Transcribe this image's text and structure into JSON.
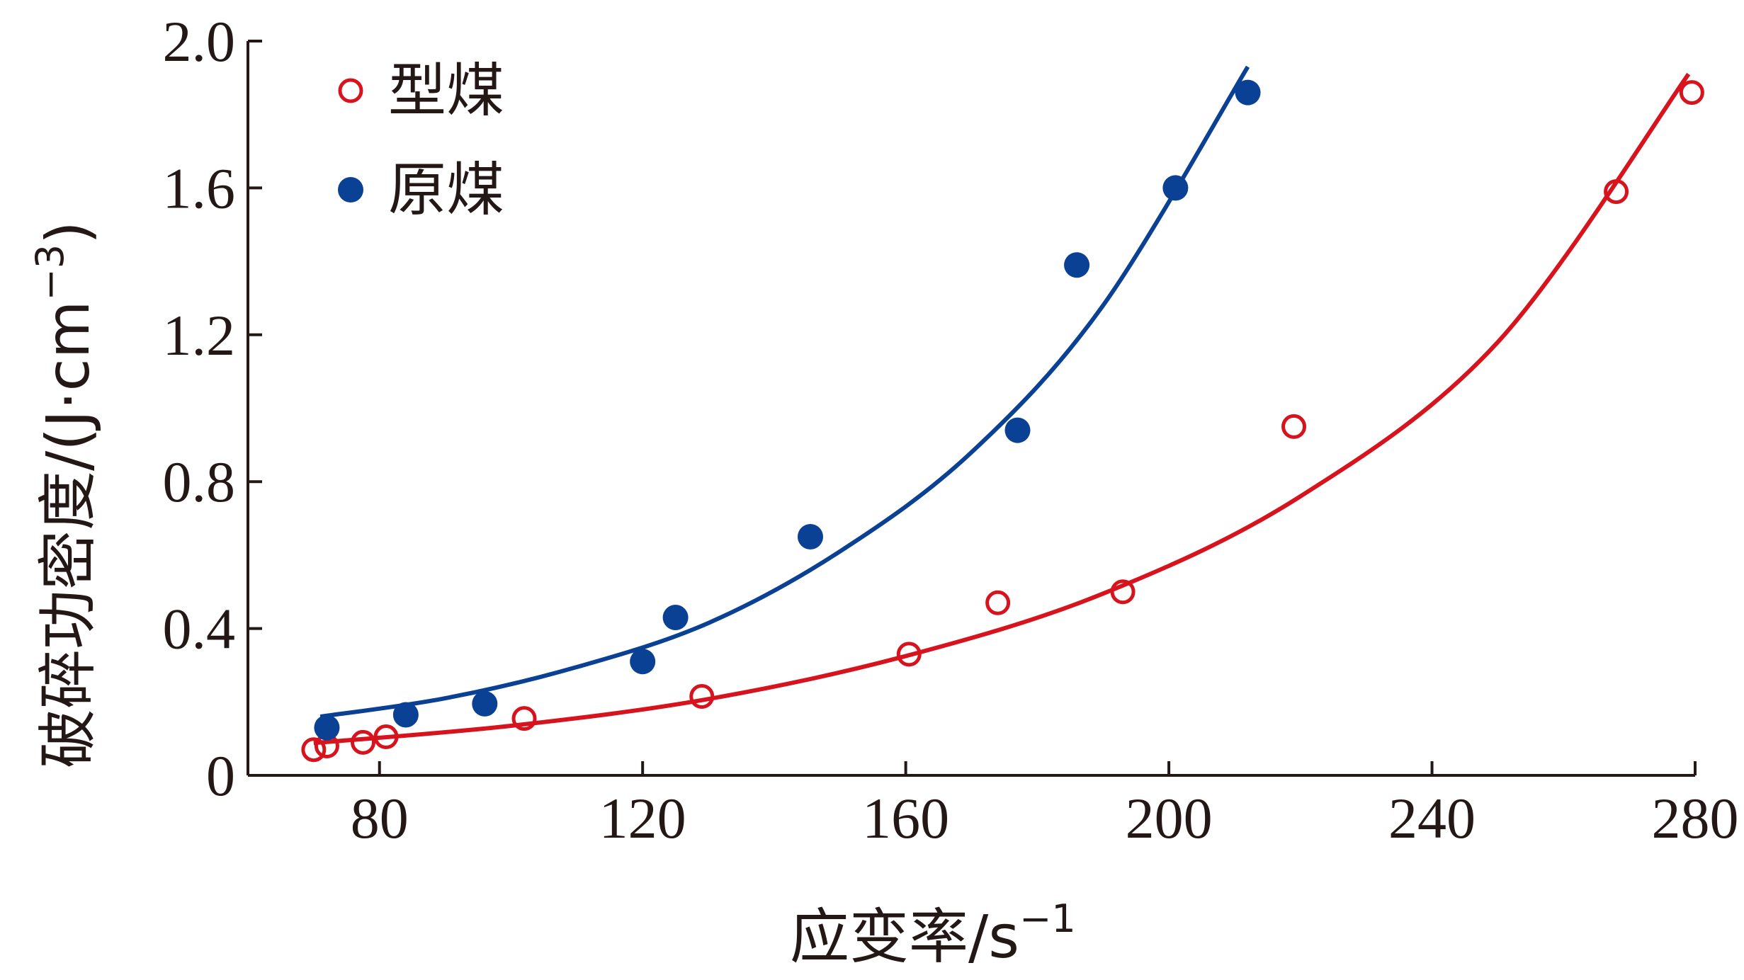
{
  "chart_data": {
    "type": "scatter",
    "xlabel": "应变率/s",
    "xlabel_sup": "−1",
    "ylabel": "破碎功密度/(J·cm",
    "ylabel_sup": "−3",
    "ylabel_close": ")",
    "xlim": [
      60,
      280
    ],
    "ylim": [
      0,
      2.0
    ],
    "x_ticks": [
      80,
      120,
      160,
      200,
      240,
      280
    ],
    "x_tick_labels": [
      "80",
      "120",
      "160",
      "200",
      "240",
      "280"
    ],
    "y_ticks": [
      0,
      0.4,
      0.8,
      1.2,
      1.6,
      2.0
    ],
    "y_tick_labels": [
      "0",
      "0.4",
      "0.8",
      "1.2",
      "1.6",
      "2.0"
    ],
    "grid": false,
    "legend_position": "top-left",
    "series": [
      {
        "name": "型煤",
        "color": "#d7141e",
        "marker": "open-circle",
        "x": [
          70,
          72,
          77.5,
          81,
          102,
          129,
          160.5,
          174,
          193,
          219,
          268,
          279.5
        ],
        "y": [
          0.07,
          0.08,
          0.09,
          0.105,
          0.155,
          0.215,
          0.33,
          0.47,
          0.5,
          0.95,
          1.59,
          1.86
        ],
        "fit": {
          "x": [
            70,
            100,
            130,
            160,
            190,
            220,
            250,
            279
          ],
          "y": [
            0.088,
            0.135,
            0.208,
            0.325,
            0.495,
            0.76,
            1.18,
            1.91
          ]
        }
      },
      {
        "name": "原煤",
        "color": "#0a4194",
        "marker": "filled-circle",
        "x": [
          72,
          84,
          96,
          120,
          125,
          145.5,
          177,
          186,
          201,
          212
        ],
        "y": [
          0.13,
          0.165,
          0.195,
          0.31,
          0.43,
          0.65,
          0.94,
          1.39,
          1.6,
          1.86
        ],
        "fit": {
          "x": [
            71,
            90,
            110,
            130,
            150,
            170,
            190,
            212
          ],
          "y": [
            0.16,
            0.21,
            0.295,
            0.415,
            0.61,
            0.88,
            1.28,
            1.93
          ]
        }
      }
    ]
  }
}
